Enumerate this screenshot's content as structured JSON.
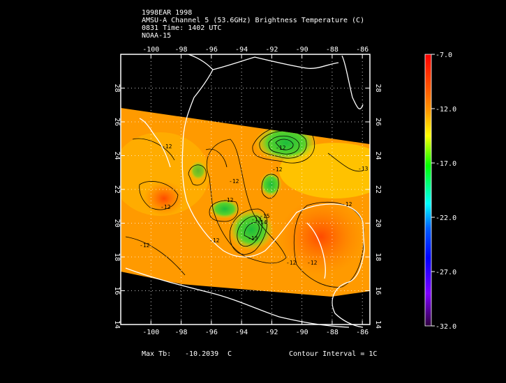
{
  "header": {
    "line1": "1998EAR 1998",
    "line2": "AMSU-A Channel 5 (53.6GHz) Brightness Temperature (C)",
    "line3": "0831 Time: 1402 UTC",
    "line4": "NOAA-15"
  },
  "map": {
    "lon_ticks": [
      "-100",
      "-98",
      "-96",
      "-94",
      "-92",
      "-90",
      "-88",
      "-86"
    ],
    "lat_ticks": [
      "14",
      "16",
      "18",
      "20",
      "22",
      "24",
      "26",
      "28"
    ],
    "lon_range": [
      -102,
      -85.5
    ],
    "lat_range": [
      14,
      30
    ],
    "contour_labels": [
      "-12",
      "-12",
      "-12",
      "-13",
      "-12",
      "-12",
      "-12",
      "-13",
      "-12",
      "-12",
      "-12",
      "-14",
      "-15",
      "-13",
      "-12",
      "-12"
    ]
  },
  "colorbar": {
    "labels": [
      "-7.0",
      "-12.0",
      "-17.0",
      "-22.0",
      "-27.0",
      "-32.0"
    ],
    "colors": [
      "#ff0000",
      "#ff8000",
      "#ffff00",
      "#00ff00",
      "#00ffff",
      "#0000ff",
      "#8000ff",
      "#400060"
    ]
  },
  "footer": {
    "max_tb_label": "Max Tb:",
    "max_tb_value": "-10.2039",
    "max_tb_unit": "C",
    "contour_interval": "Contour Interval = 1C"
  }
}
